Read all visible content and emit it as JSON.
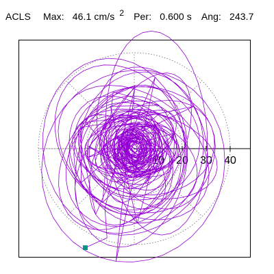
{
  "header": {
    "label": "ACLS",
    "max_key": "Max:",
    "max_value": "46.1 cm/s",
    "max_exponent": "2",
    "per_key": "Per:",
    "per_value": "0.600 s",
    "ang_key": "Ang:",
    "ang_value": "243.7"
  },
  "chart_data": {
    "type": "polar-orbit",
    "series_color": "#9400d3",
    "marker_color": "#009980",
    "grid": "dotted rings",
    "ring_values": [
      10,
      20,
      30,
      40
    ],
    "tick_labels": [
      "10",
      "20",
      "30",
      "40"
    ],
    "max_value": 46.1,
    "angle_deg": 243.7,
    "unit": "cm/s2",
    "period_s": 0.6,
    "axis_max": 48,
    "orbit_params": {
      "loops": 72,
      "ranges": [
        {
          "count": 28,
          "min_r": 3,
          "max_r": 10
        },
        {
          "count": 22,
          "min_r": 8,
          "max_r": 20
        },
        {
          "count": 14,
          "min_r": 18,
          "max_r": 32
        },
        {
          "count": 8,
          "min_r": 30,
          "max_r": 44
        }
      ]
    },
    "end_point": {
      "r": 46.1,
      "angle_deg": 243.7
    }
  }
}
